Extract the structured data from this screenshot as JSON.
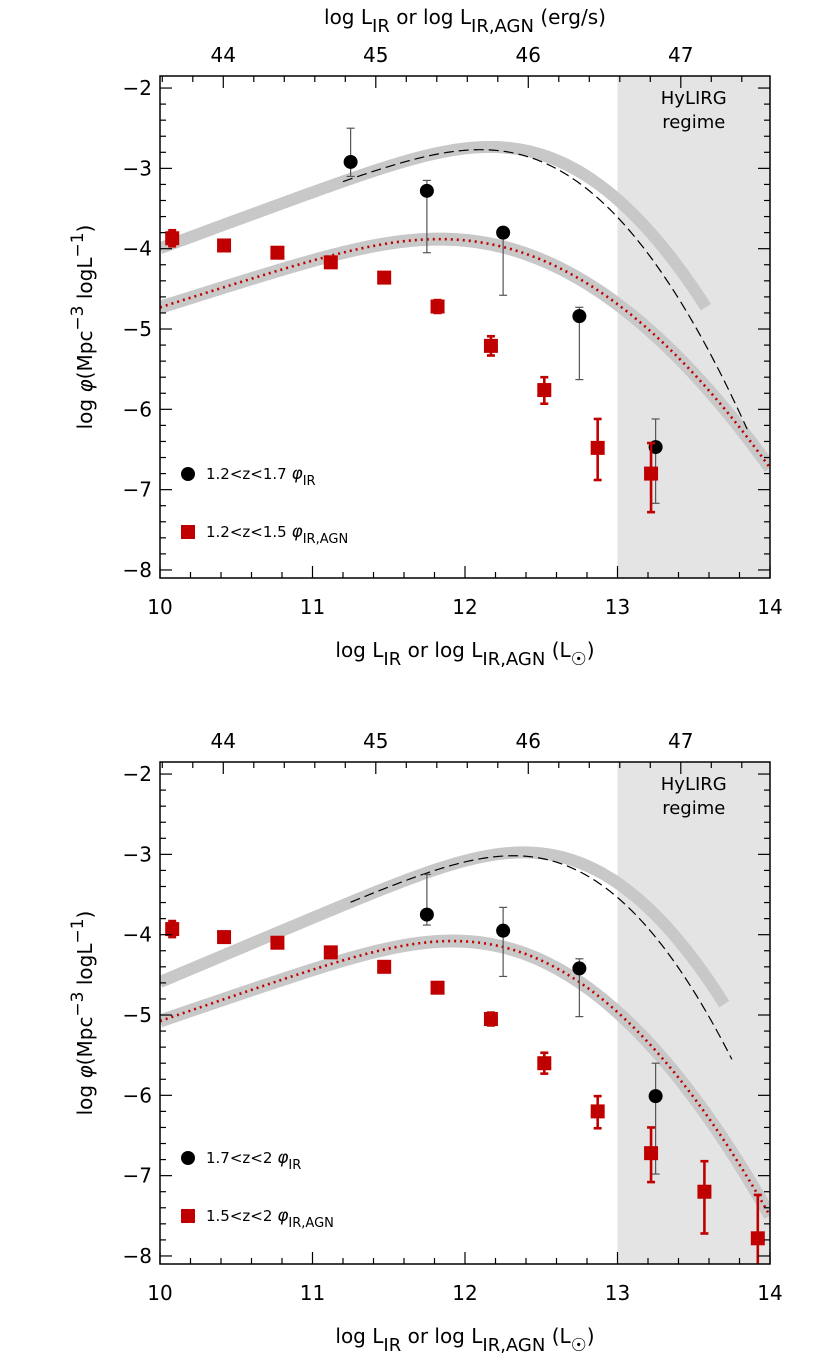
{
  "colors": {
    "red": "#c00000",
    "black": "#000000",
    "band": "#c8c8c8",
    "region": "#e4e4e4"
  },
  "axes": {
    "top_label": {
      "main": "log L",
      "sub1": "IR",
      "mid": " or log L",
      "sub2": "IR,AGN",
      "unit": " (erg/s)"
    },
    "bottom_label": {
      "main": "log L",
      "sub1": "IR",
      "mid": " or log L",
      "sub2": "IR,AGN",
      "unit": " (L",
      "sun": "☉",
      "close": ")"
    },
    "left_label": {
      "pre": "log ",
      "phi": "φ",
      "mpc": "(Mpc",
      "exp1": "−3",
      "mid": " logL",
      "exp2": "−1",
      "close": ")"
    },
    "x_ticks": [
      "10",
      "11",
      "12",
      "13",
      "14"
    ],
    "top_ticks": [
      "44",
      "45",
      "46",
      "47"
    ],
    "y_ticks": [
      "−2",
      "−3",
      "−4",
      "−5",
      "−6",
      "−7",
      "−8"
    ]
  },
  "region": {
    "line1": "HyLIRG",
    "line2": "regime"
  },
  "chart_data": [
    {
      "type": "scatter",
      "xlim": [
        10,
        14
      ],
      "ylim": [
        -8.1,
        -1.85
      ],
      "top_axis_ticks": [
        44,
        45,
        46,
        47
      ],
      "shaded_region": {
        "x_start": 13,
        "x_end": 14,
        "label": "HyLIRG regime"
      },
      "legend": [
        {
          "text": "1.2<z<1.7 ",
          "symbol": "φ",
          "sub": "IR",
          "marker": "circle"
        },
        {
          "text": "1.2<z<1.5 ",
          "symbol": "φ",
          "sub": "IR,AGN",
          "marker": "square"
        }
      ],
      "series": [
        {
          "name": "1.2<z<1.7 φIR",
          "marker": "circle",
          "points": [
            {
              "x": 11.25,
              "y": -2.92,
              "ylo": -3.1,
              "yhi": -2.5
            },
            {
              "x": 11.75,
              "y": -3.28,
              "ylo": -4.05,
              "yhi": -3.15
            },
            {
              "x": 12.25,
              "y": -3.8,
              "ylo": -4.58,
              "yhi": -3.77
            },
            {
              "x": 12.75,
              "y": -4.84,
              "ylo": -5.63,
              "yhi": -4.73
            },
            {
              "x": 13.25,
              "y": -6.47,
              "ylo": -7.17,
              "yhi": -6.12
            }
          ]
        },
        {
          "name": "1.2<z<1.5 φIR,AGN",
          "marker": "square",
          "points": [
            {
              "x": 10.08,
              "y": -3.87,
              "ylo": -3.97,
              "yhi": -3.77
            },
            {
              "x": 10.42,
              "y": -3.96,
              "ylo": -4.02,
              "yhi": -3.9
            },
            {
              "x": 10.77,
              "y": -4.05,
              "ylo": -4.11,
              "yhi": -3.99
            },
            {
              "x": 11.12,
              "y": -4.17,
              "ylo": -4.23,
              "yhi": -4.11
            },
            {
              "x": 11.47,
              "y": -4.36,
              "ylo": -4.42,
              "yhi": -4.3
            },
            {
              "x": 11.82,
              "y": -4.72,
              "ylo": -4.8,
              "yhi": -4.64
            },
            {
              "x": 12.17,
              "y": -5.21,
              "ylo": -5.33,
              "yhi": -5.09
            },
            {
              "x": 12.52,
              "y": -5.76,
              "ylo": -5.93,
              "yhi": -5.6
            },
            {
              "x": 12.87,
              "y": -6.48,
              "ylo": -6.88,
              "yhi": -6.12
            },
            {
              "x": 13.22,
              "y": -6.8,
              "ylo": -7.28,
              "yhi": -6.42
            }
          ]
        }
      ],
      "fits": {
        "ir": {
          "phi_star": -2.7,
          "lstar": 11.85,
          "alpha": 0.3,
          "sigma": 0.45,
          "x_min": 10.0,
          "x_max": 13.58
        },
        "ir_dashed": {
          "phi_star": -2.7,
          "lstar": 11.85,
          "alpha": 0.3,
          "sigma": 0.42,
          "x_min": 11.2,
          "x_max": 13.85
        },
        "agn": {
          "phi_star": -3.95,
          "lstar": 11.3,
          "alpha": 0.4,
          "sigma": 0.6,
          "x_min": 10.0,
          "x_max": 14.0
        }
      }
    },
    {
      "type": "scatter",
      "xlim": [
        10,
        14
      ],
      "ylim": [
        -8.1,
        -1.85
      ],
      "top_axis_ticks": [
        44,
        45,
        46,
        47
      ],
      "shaded_region": {
        "x_start": 13,
        "x_end": 14,
        "label": "HyLIRG regime"
      },
      "legend": [
        {
          "text": "1.7<z<2 ",
          "symbol": "φ",
          "sub": "IR",
          "marker": "circle"
        },
        {
          "text": "1.5<z<2 ",
          "symbol": "φ",
          "sub": "IR,AGN",
          "marker": "square"
        }
      ],
      "series": [
        {
          "name": "1.7<z<2 φIR",
          "marker": "circle",
          "points": [
            {
              "x": 11.75,
              "y": -3.75,
              "ylo": -3.88,
              "yhi": -3.25
            },
            {
              "x": 12.25,
              "y": -3.95,
              "ylo": -4.52,
              "yhi": -3.66
            },
            {
              "x": 12.75,
              "y": -4.42,
              "ylo": -5.02,
              "yhi": -4.3
            },
            {
              "x": 13.25,
              "y": -6.01,
              "ylo": -6.98,
              "yhi": -5.6
            }
          ]
        },
        {
          "name": "1.5<z<2 φIR,AGN",
          "marker": "square",
          "points": [
            {
              "x": 10.08,
              "y": -3.93,
              "ylo": -4.03,
              "yhi": -3.83
            },
            {
              "x": 10.42,
              "y": -4.03,
              "ylo": -4.09,
              "yhi": -3.97
            },
            {
              "x": 10.77,
              "y": -4.1,
              "ylo": -4.16,
              "yhi": -4.04
            },
            {
              "x": 11.12,
              "y": -4.22,
              "ylo": -4.28,
              "yhi": -4.16
            },
            {
              "x": 11.47,
              "y": -4.4,
              "ylo": -4.46,
              "yhi": -4.34
            },
            {
              "x": 11.82,
              "y": -4.66,
              "ylo": -4.72,
              "yhi": -4.6
            },
            {
              "x": 12.17,
              "y": -5.05,
              "ylo": -5.13,
              "yhi": -4.97
            },
            {
              "x": 12.52,
              "y": -5.6,
              "ylo": -5.73,
              "yhi": -5.47
            },
            {
              "x": 12.87,
              "y": -6.2,
              "ylo": -6.41,
              "yhi": -6.01
            },
            {
              "x": 13.22,
              "y": -6.72,
              "ylo": -7.08,
              "yhi": -6.4
            },
            {
              "x": 13.57,
              "y": -7.2,
              "ylo": -7.72,
              "yhi": -6.82
            },
            {
              "x": 13.92,
              "y": -7.78,
              "ylo": -8.3,
              "yhi": -7.24
            }
          ]
        }
      ],
      "fits": {
        "ir": {
          "phi_star": -2.95,
          "lstar": 12.05,
          "alpha": 0.2,
          "sigma": 0.43,
          "x_min": 10.0,
          "x_max": 13.7
        },
        "ir_dashed": {
          "phi_star": -2.95,
          "lstar": 12.05,
          "alpha": 0.2,
          "sigma": 0.4,
          "x_min": 11.25,
          "x_max": 13.75
        },
        "agn": {
          "phi_star": -4.1,
          "lstar": 11.5,
          "alpha": 0.35,
          "sigma": 0.52,
          "x_min": 10.0,
          "x_max": 14.0
        }
      }
    }
  ]
}
